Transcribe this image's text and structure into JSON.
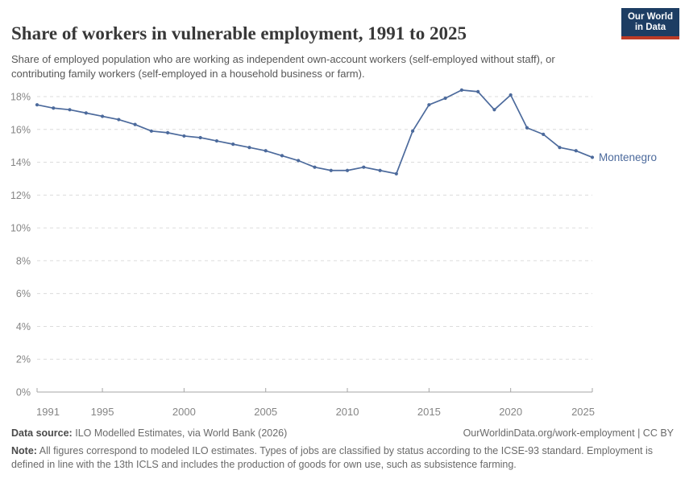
{
  "header": {
    "title": "Share of workers in vulnerable employment, 1991 to 2025",
    "subtitle": "Share of employed population who are working as independent own-account workers (self-employed without staff), or contributing family workers (self-employed in a household business or farm).",
    "logo_line1": "Our World",
    "logo_line2": "in Data"
  },
  "colors": {
    "series_blue": "#4C6A9C",
    "logo_navy": "#1d3d63",
    "logo_red": "#bc3b26",
    "gridline": "#dcdcdc",
    "axis": "#a5a5a5",
    "tick_label": "#858585"
  },
  "chart_data": {
    "type": "line",
    "title": "Share of workers in vulnerable employment, 1991 to 2025",
    "xlabel": "",
    "ylabel": "",
    "ylim": [
      0,
      18
    ],
    "grid": "dashed-horizontal",
    "legend": "inline-end-label",
    "y_tick_format": "{}%",
    "yticks": [
      0,
      2,
      4,
      6,
      8,
      10,
      12,
      14,
      16,
      18
    ],
    "xticks": [
      1991,
      1995,
      2000,
      2005,
      2010,
      2015,
      2020,
      2025
    ],
    "x": [
      1991,
      1992,
      1993,
      1994,
      1995,
      1996,
      1997,
      1998,
      1999,
      2000,
      2001,
      2002,
      2003,
      2004,
      2005,
      2006,
      2007,
      2008,
      2009,
      2010,
      2011,
      2012,
      2013,
      2014,
      2015,
      2016,
      2017,
      2018,
      2019,
      2020,
      2021,
      2022,
      2023,
      2024,
      2025
    ],
    "series": [
      {
        "name": "Montenegro",
        "color": "#4C6A9C",
        "values": [
          17.5,
          17.3,
          17.2,
          17.0,
          16.8,
          16.6,
          16.3,
          15.9,
          15.8,
          15.6,
          15.5,
          15.3,
          15.1,
          14.9,
          14.7,
          14.4,
          14.1,
          13.7,
          13.5,
          13.5,
          13.7,
          13.5,
          13.3,
          15.9,
          17.5,
          17.9,
          18.4,
          18.3,
          17.2,
          18.1,
          16.1,
          15.7,
          14.9,
          14.7,
          14.3
        ]
      }
    ]
  },
  "footer": {
    "source_label": "Data source:",
    "source_value": "ILO Modelled Estimates, via World Bank (2026)",
    "link": "OurWorldinData.org/work-employment | CC BY",
    "note_label": "Note:",
    "note_value": "All figures correspond to modeled ILO estimates. Types of jobs are classified by status according to the ICSE-93 standard. Employment is defined in line with the 13th ICLS and includes the production of goods for own use, such as subsistence farming."
  }
}
